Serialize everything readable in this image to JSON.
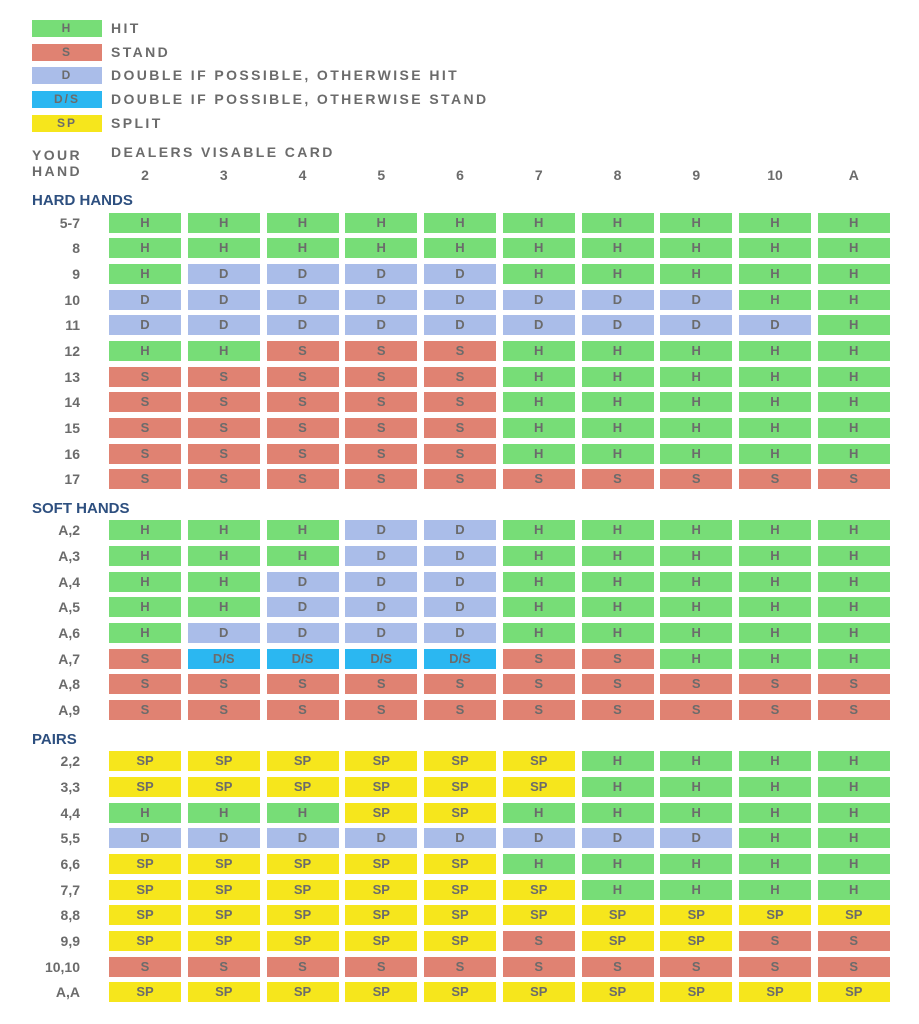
{
  "colors": {
    "H": "#77dd77",
    "S": "#e08272",
    "D": "#aabde9",
    "DS": "#2bb7f1",
    "SP": "#f6e61c"
  },
  "legend": [
    {
      "code": "H",
      "box": "H",
      "label": "HIT"
    },
    {
      "code": "S",
      "box": "S",
      "label": "STAND"
    },
    {
      "code": "D",
      "box": "D",
      "label": "DOUBLE IF POSSIBLE, OTHERWISE HIT"
    },
    {
      "code": "DS",
      "box": "D/S",
      "label": "DOUBLE IF POSSIBLE, OTHERWISE STAND"
    },
    {
      "code": "SP",
      "box": "SP",
      "label": "SPLIT"
    }
  ],
  "chart_data": {
    "type": "table",
    "row_header_line1": "YOUR",
    "row_header_line2": "HAND",
    "column_header": "DEALERS VISABLE CARD",
    "columns": [
      "2",
      "3",
      "4",
      "5",
      "6",
      "7",
      "8",
      "9",
      "10",
      "A"
    ],
    "display": {
      "H": "H",
      "S": "S",
      "D": "D",
      "DS": "D/S",
      "SP": "SP"
    },
    "sections": [
      {
        "title": "HARD HANDS",
        "rows": [
          {
            "hand": "5-7",
            "cells": [
              "H",
              "H",
              "H",
              "H",
              "H",
              "H",
              "H",
              "H",
              "H",
              "H"
            ]
          },
          {
            "hand": "8",
            "cells": [
              "H",
              "H",
              "H",
              "H",
              "H",
              "H",
              "H",
              "H",
              "H",
              "H"
            ]
          },
          {
            "hand": "9",
            "cells": [
              "H",
              "D",
              "D",
              "D",
              "D",
              "H",
              "H",
              "H",
              "H",
              "H"
            ]
          },
          {
            "hand": "10",
            "cells": [
              "D",
              "D",
              "D",
              "D",
              "D",
              "D",
              "D",
              "D",
              "H",
              "H"
            ]
          },
          {
            "hand": "11",
            "cells": [
              "D",
              "D",
              "D",
              "D",
              "D",
              "D",
              "D",
              "D",
              "D",
              "H"
            ]
          },
          {
            "hand": "12",
            "cells": [
              "H",
              "H",
              "S",
              "S",
              "S",
              "H",
              "H",
              "H",
              "H",
              "H"
            ]
          },
          {
            "hand": "13",
            "cells": [
              "S",
              "S",
              "S",
              "S",
              "S",
              "H",
              "H",
              "H",
              "H",
              "H"
            ]
          },
          {
            "hand": "14",
            "cells": [
              "S",
              "S",
              "S",
              "S",
              "S",
              "H",
              "H",
              "H",
              "H",
              "H"
            ]
          },
          {
            "hand": "15",
            "cells": [
              "S",
              "S",
              "S",
              "S",
              "S",
              "H",
              "H",
              "H",
              "H",
              "H"
            ]
          },
          {
            "hand": "16",
            "cells": [
              "S",
              "S",
              "S",
              "S",
              "S",
              "H",
              "H",
              "H",
              "H",
              "H"
            ]
          },
          {
            "hand": "17",
            "cells": [
              "S",
              "S",
              "S",
              "S",
              "S",
              "S",
              "S",
              "S",
              "S",
              "S"
            ]
          }
        ]
      },
      {
        "title": "SOFT HANDS",
        "rows": [
          {
            "hand": "A,2",
            "cells": [
              "H",
              "H",
              "H",
              "D",
              "D",
              "H",
              "H",
              "H",
              "H",
              "H"
            ]
          },
          {
            "hand": "A,3",
            "cells": [
              "H",
              "H",
              "H",
              "D",
              "D",
              "H",
              "H",
              "H",
              "H",
              "H"
            ]
          },
          {
            "hand": "A,4",
            "cells": [
              "H",
              "H",
              "D",
              "D",
              "D",
              "H",
              "H",
              "H",
              "H",
              "H"
            ]
          },
          {
            "hand": "A,5",
            "cells": [
              "H",
              "H",
              "D",
              "D",
              "D",
              "H",
              "H",
              "H",
              "H",
              "H"
            ]
          },
          {
            "hand": "A,6",
            "cells": [
              "H",
              "D",
              "D",
              "D",
              "D",
              "H",
              "H",
              "H",
              "H",
              "H"
            ]
          },
          {
            "hand": "A,7",
            "cells": [
              "S",
              "DS",
              "DS",
              "DS",
              "DS",
              "S",
              "S",
              "H",
              "H",
              "H"
            ]
          },
          {
            "hand": "A,8",
            "cells": [
              "S",
              "S",
              "S",
              "S",
              "S",
              "S",
              "S",
              "S",
              "S",
              "S"
            ]
          },
          {
            "hand": "A,9",
            "cells": [
              "S",
              "S",
              "S",
              "S",
              "S",
              "S",
              "S",
              "S",
              "S",
              "S"
            ]
          }
        ]
      },
      {
        "title": "PAIRS",
        "rows": [
          {
            "hand": "2,2",
            "cells": [
              "SP",
              "SP",
              "SP",
              "SP",
              "SP",
              "SP",
              "H",
              "H",
              "H",
              "H"
            ]
          },
          {
            "hand": "3,3",
            "cells": [
              "SP",
              "SP",
              "SP",
              "SP",
              "SP",
              "SP",
              "H",
              "H",
              "H",
              "H"
            ]
          },
          {
            "hand": "4,4",
            "cells": [
              "H",
              "H",
              "H",
              "SP",
              "SP",
              "H",
              "H",
              "H",
              "H",
              "H"
            ]
          },
          {
            "hand": "5,5",
            "cells": [
              "D",
              "D",
              "D",
              "D",
              "D",
              "D",
              "D",
              "D",
              "H",
              "H"
            ]
          },
          {
            "hand": "6,6",
            "cells": [
              "SP",
              "SP",
              "SP",
              "SP",
              "SP",
              "H",
              "H",
              "H",
              "H",
              "H"
            ]
          },
          {
            "hand": "7,7",
            "cells": [
              "SP",
              "SP",
              "SP",
              "SP",
              "SP",
              "SP",
              "H",
              "H",
              "H",
              "H"
            ]
          },
          {
            "hand": "8,8",
            "cells": [
              "SP",
              "SP",
              "SP",
              "SP",
              "SP",
              "SP",
              "SP",
              "SP",
              "SP",
              "SP"
            ]
          },
          {
            "hand": "9,9",
            "cells": [
              "SP",
              "SP",
              "SP",
              "SP",
              "SP",
              "S",
              "SP",
              "SP",
              "S",
              "S"
            ]
          },
          {
            "hand": "10,10",
            "cells": [
              "S",
              "S",
              "S",
              "S",
              "S",
              "S",
              "S",
              "S",
              "S",
              "S"
            ]
          },
          {
            "hand": "A,A",
            "cells": [
              "SP",
              "SP",
              "SP",
              "SP",
              "SP",
              "SP",
              "SP",
              "SP",
              "SP",
              "SP"
            ]
          }
        ]
      }
    ]
  }
}
